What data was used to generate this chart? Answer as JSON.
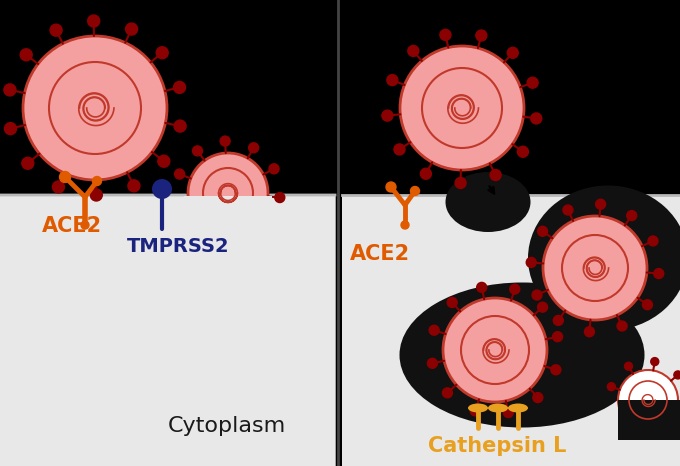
{
  "bg_color": "#000000",
  "left_panel_color": "#e8e8e8",
  "right_panel_color": "#e8e8e8",
  "virus_outer_color": "#c0392b",
  "virus_inner_color": "#f4a0a0",
  "spike_color": "#8b0000",
  "ace2_color": "#e05a00",
  "tmprss2_color": "#1a237e",
  "cathepsin_color": "#e8a020",
  "cytoplasm_text": "Cytoplasm",
  "ace2_text": "ACE2",
  "tmprss2_text": "TMPRSS2",
  "cathepsin_text": "Cathepsin L",
  "endosome_color": "#111111"
}
